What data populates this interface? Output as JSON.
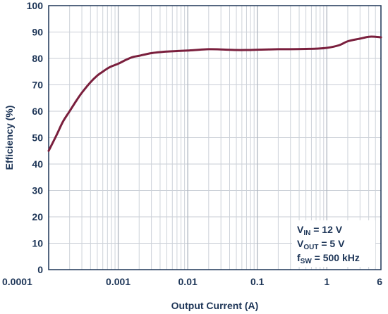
{
  "chart_data": {
    "type": "line",
    "xlabel": "Output Current (A)",
    "ylabel": "Efficiency (%)",
    "x_scale": "log",
    "xlim": [
      0.0001,
      6
    ],
    "ylim": [
      0,
      100
    ],
    "x_tick_labels": [
      "0.0001",
      "0.001",
      "0.01",
      "0.1",
      "1",
      "6"
    ],
    "x_tick_values": [
      0.0001,
      0.001,
      0.01,
      0.1,
      1,
      6
    ],
    "y_tick_labels": [
      "0",
      "10",
      "20",
      "30",
      "40",
      "50",
      "60",
      "70",
      "80",
      "90",
      "100"
    ],
    "y_tick_values": [
      0,
      10,
      20,
      30,
      40,
      50,
      60,
      70,
      80,
      90,
      100
    ],
    "grid": true,
    "annotation": {
      "lines": [
        {
          "main": "V",
          "sub": "IN",
          "rest": " = 12 V"
        },
        {
          "main": "V",
          "sub": "OUT",
          "rest": " = 5 V"
        },
        {
          "main": "f",
          "sub": "SW",
          "rest": " = 500 kHz"
        }
      ]
    },
    "series": [
      {
        "color": "#7a1f3d",
        "x": [
          0.0001,
          0.00013,
          0.00016,
          0.0002,
          0.00025,
          0.0003,
          0.0004,
          0.0005,
          0.0006,
          0.0007,
          0.0008,
          0.001,
          0.0013,
          0.0016,
          0.002,
          0.003,
          0.005,
          0.007,
          0.01,
          0.02,
          0.03,
          0.05,
          0.07,
          0.1,
          0.2,
          0.3,
          0.5,
          0.7,
          1,
          1.5,
          2,
          3,
          4,
          5,
          6
        ],
        "y": [
          45,
          51,
          56,
          60,
          64,
          67,
          71,
          73.5,
          75,
          76.2,
          77,
          78,
          79.5,
          80.5,
          81,
          82,
          82.6,
          82.8,
          83,
          83.5,
          83.4,
          83.2,
          83.2,
          83.3,
          83.5,
          83.5,
          83.6,
          83.7,
          84,
          85,
          86.5,
          87.5,
          88.2,
          88.2,
          88
        ]
      }
    ]
  }
}
